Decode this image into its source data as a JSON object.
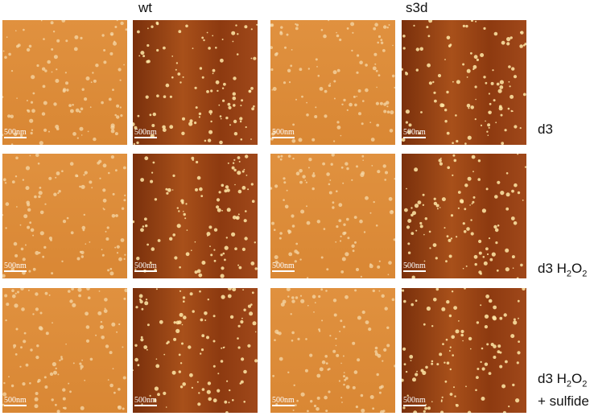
{
  "columns": [
    "wt",
    "s3d"
  ],
  "rows": [
    {
      "label": [
        "d3"
      ]
    },
    {
      "label": [
        "d3 H",
        "2",
        "O",
        "2"
      ]
    },
    {
      "label": [
        "d3 H",
        "2",
        "O",
        "2"
      ],
      "line2": "+ sulfide"
    }
  ],
  "scale_bar": "500nm"
}
